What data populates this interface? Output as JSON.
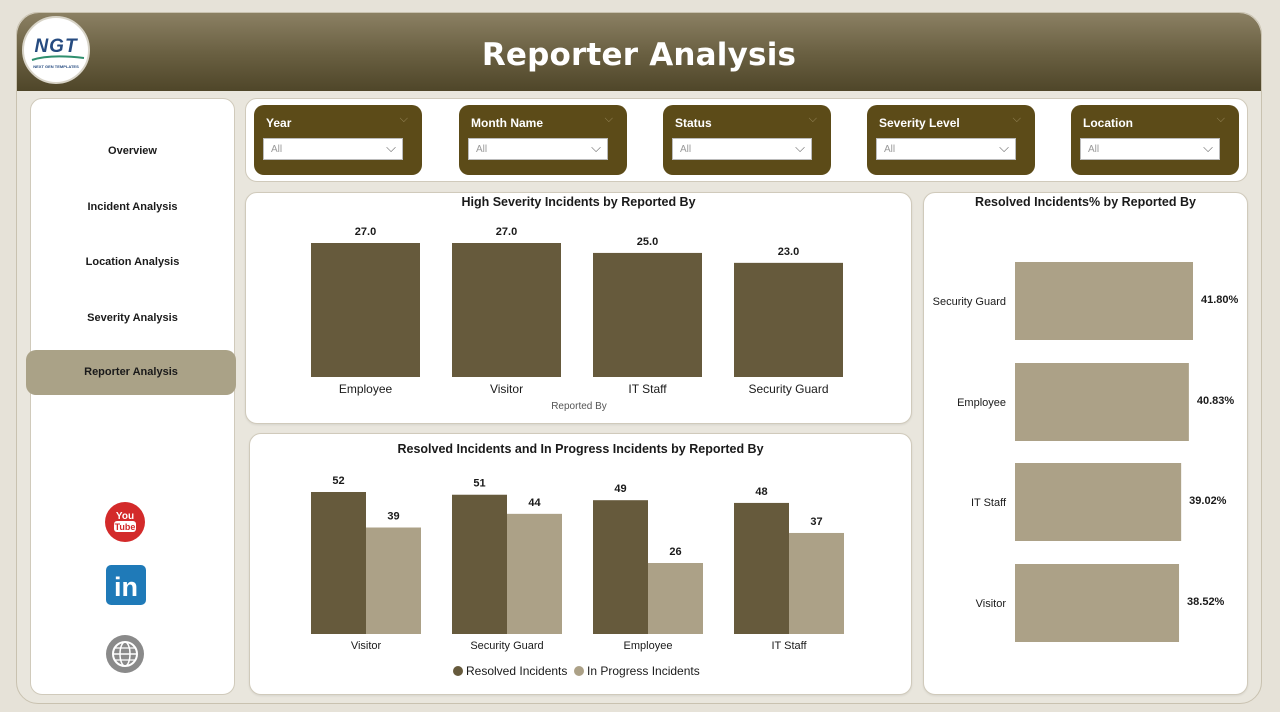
{
  "header": {
    "title": "Reporter Analysis",
    "logo_text": "NGT",
    "logo_sub": "NEXT GEN TEMPLATES"
  },
  "sidebar": {
    "items": [
      {
        "label": "Overview"
      },
      {
        "label": "Incident Analysis"
      },
      {
        "label": "Location Analysis"
      },
      {
        "label": "Severity Analysis"
      },
      {
        "label": "Reporter Analysis",
        "active": true
      }
    ],
    "social": [
      "youtube-icon",
      "linkedin-icon",
      "website-icon"
    ],
    "youtube_text_1": "You",
    "youtube_text_2": "Tube",
    "linkedin_text": "in"
  },
  "filters": [
    {
      "label": "Year",
      "value": "All"
    },
    {
      "label": "Month Name",
      "value": "All"
    },
    {
      "label": "Status",
      "value": "All"
    },
    {
      "label": "Severity Level",
      "value": "All"
    },
    {
      "label": "Location",
      "value": "All"
    }
  ],
  "colors": {
    "dark": "#665a3c",
    "light": "#aca187",
    "slicer": "#5c4b18"
  },
  "chart_data": [
    {
      "type": "bar",
      "title": "High Severity Incidents by Reported By",
      "xlabel": "Reported By",
      "categories": [
        "Employee",
        "Visitor",
        "IT Staff",
        "Security Guard"
      ],
      "values": [
        27.0,
        27.0,
        25.0,
        23.0
      ],
      "value_labels": [
        "27.0",
        "27.0",
        "25.0",
        "23.0"
      ]
    },
    {
      "type": "bar",
      "title": "Resolved Incidents and In Progress Incidents by Reported By",
      "categories": [
        "Visitor",
        "Security Guard",
        "Employee",
        "IT Staff"
      ],
      "series": [
        {
          "name": "Resolved Incidents",
          "values": [
            52,
            51,
            49,
            48
          ]
        },
        {
          "name": "In Progress Incidents",
          "values": [
            39,
            44,
            26,
            37
          ]
        }
      ],
      "legend": "bottom"
    },
    {
      "type": "bar",
      "orientation": "horizontal",
      "title": "Resolved Incidents% by Reported By",
      "categories": [
        "Security Guard",
        "Employee",
        "IT Staff",
        "Visitor"
      ],
      "values": [
        41.8,
        40.83,
        39.02,
        38.52
      ],
      "value_labels": [
        "41.80%",
        "40.83%",
        "39.02%",
        "38.52%"
      ]
    }
  ]
}
